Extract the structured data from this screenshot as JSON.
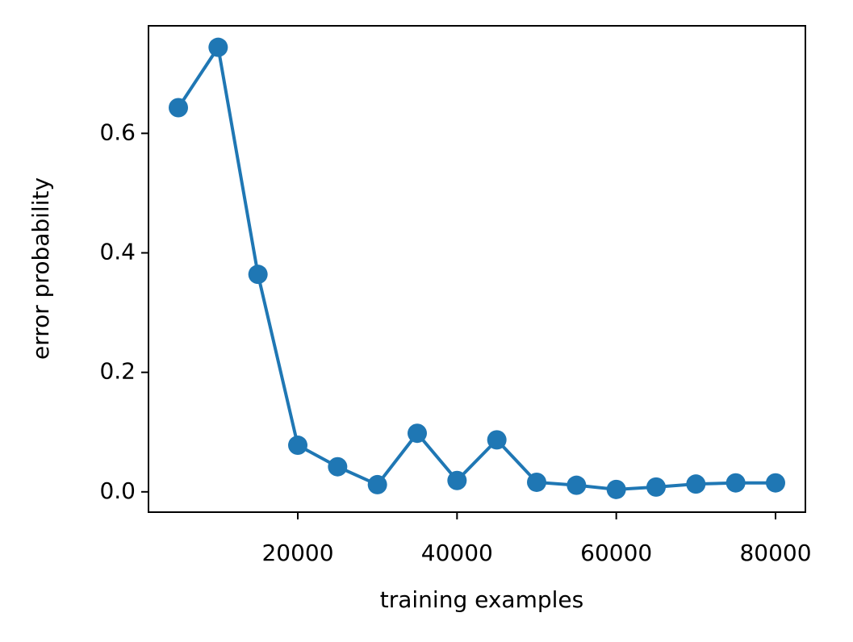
{
  "chart_data": {
    "type": "line",
    "xlabel": "training examples",
    "ylabel": "error probability",
    "x": [
      5000,
      10000,
      15000,
      20000,
      25000,
      30000,
      35000,
      40000,
      45000,
      50000,
      55000,
      60000,
      65000,
      70000,
      75000,
      80000
    ],
    "series": [
      {
        "color": "#1f77b4",
        "values": [
          0.643,
          0.744,
          0.364,
          0.078,
          0.042,
          0.012,
          0.098,
          0.019,
          0.087,
          0.016,
          0.011,
          0.004,
          0.008,
          0.013,
          0.015,
          0.015
        ]
      }
    ],
    "xlim": [
      1250,
      83750
    ],
    "ylim": [
      -0.034,
      0.78
    ],
    "xticks": [
      20000,
      40000,
      60000,
      80000
    ],
    "yticks": [
      {
        "value": 0,
        "label": "0.0"
      },
      0.2,
      0.4,
      0.6
    ],
    "grid": false
  }
}
